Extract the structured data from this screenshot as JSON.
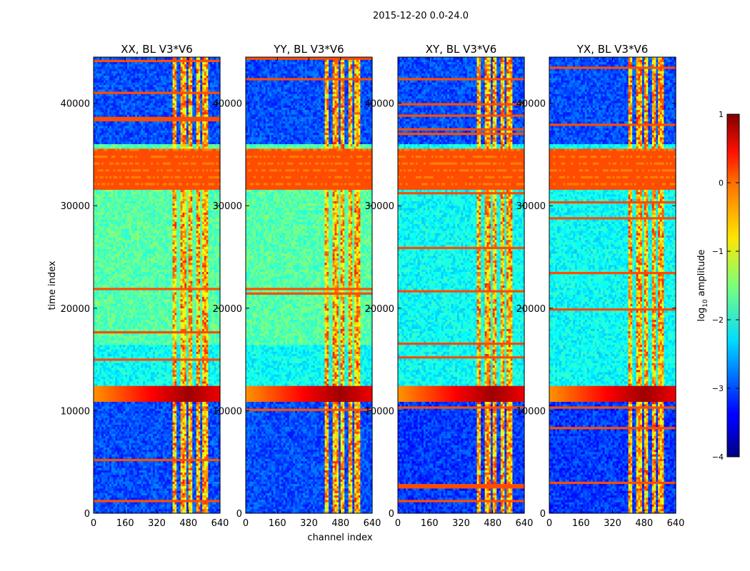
{
  "figure": {
    "suptitle": "2015-12-20 0.0-24.0"
  },
  "chart_data": {
    "type": "heatmap",
    "xlabel": "channel index",
    "ylabel": "time index",
    "xlim": [
      0,
      640
    ],
    "ylim": [
      0,
      44500
    ],
    "x_ticks": [
      0,
      160,
      320,
      480,
      640
    ],
    "x_tick_labels": [
      "0",
      "160",
      "320",
      "480",
      "640"
    ],
    "y_ticks": [
      0,
      10000,
      20000,
      30000,
      40000
    ],
    "y_tick_labels": [
      "0",
      "10000",
      "20000",
      "30000",
      "40000"
    ],
    "panels": [
      {
        "title": "XX, BL V3*V6"
      },
      {
        "title": "YY, BL V3*V6"
      },
      {
        "title": "XY, BL V3*V6"
      },
      {
        "title": "YX, BL V3*V6"
      }
    ],
    "colorbar": {
      "label": "log",
      "label_sub": "10",
      "label_suffix": " amplitude",
      "vmin": -4,
      "vmax": 1,
      "ticks": [
        1,
        0,
        -1,
        -2,
        -3,
        -4
      ],
      "tick_labels": [
        "1",
        "0",
        "−1",
        "−2",
        "−3",
        "−4"
      ]
    },
    "colormap": "jet",
    "rfi_channel_bands": [
      [
        400,
        420
      ],
      [
        440,
        470
      ],
      [
        480,
        500
      ],
      [
        525,
        540
      ],
      [
        555,
        585
      ]
    ],
    "flagged_time_ranges": [
      [
        31500,
        35500
      ]
    ],
    "bright_time_ranges": [
      [
        11000,
        12500
      ]
    ]
  }
}
